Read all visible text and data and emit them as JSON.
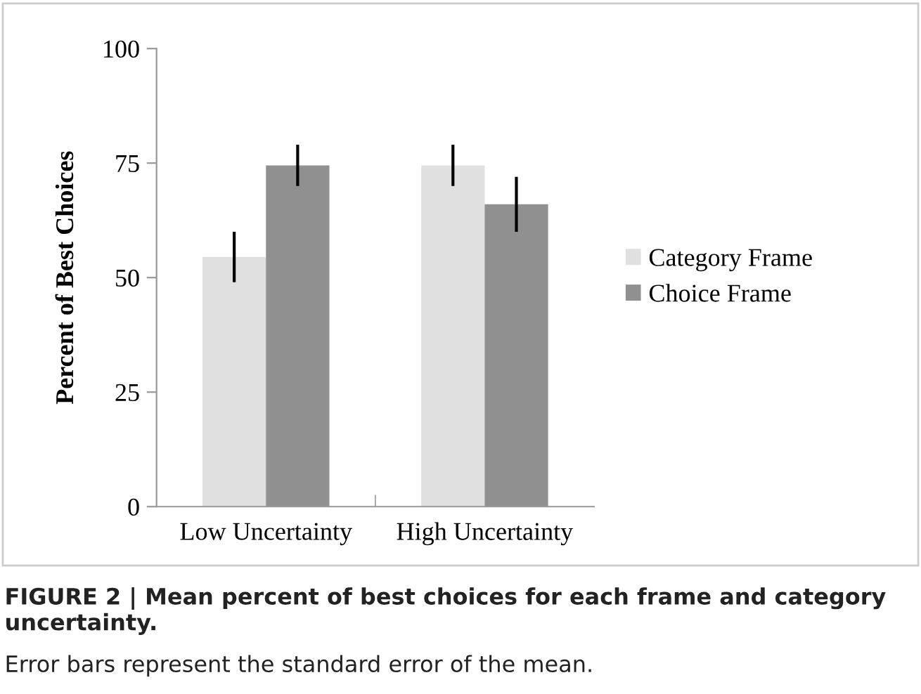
{
  "chart_data": {
    "type": "bar",
    "ylabel": "Percent of Best Choices",
    "categories": [
      "Low Uncertainty",
      "High Uncertainty"
    ],
    "series": [
      {
        "name": "Category Frame",
        "color": "#e0e0e0",
        "values": [
          54.5,
          74.5
        ],
        "errors": [
          5.5,
          4.5
        ]
      },
      {
        "name": "Choice Frame",
        "color": "#909090",
        "values": [
          74.5,
          66
        ],
        "errors": [
          4.5,
          6
        ]
      }
    ],
    "ylim": [
      0,
      100
    ],
    "yticks": [
      0,
      25,
      50,
      75,
      100
    ],
    "grid": false,
    "legend": "right",
    "annotations": [
      "FIGURE 2 | Mean percent of best choices for each frame and category uncertainty.",
      "Error bars represent the standard error of the mean."
    ]
  }
}
